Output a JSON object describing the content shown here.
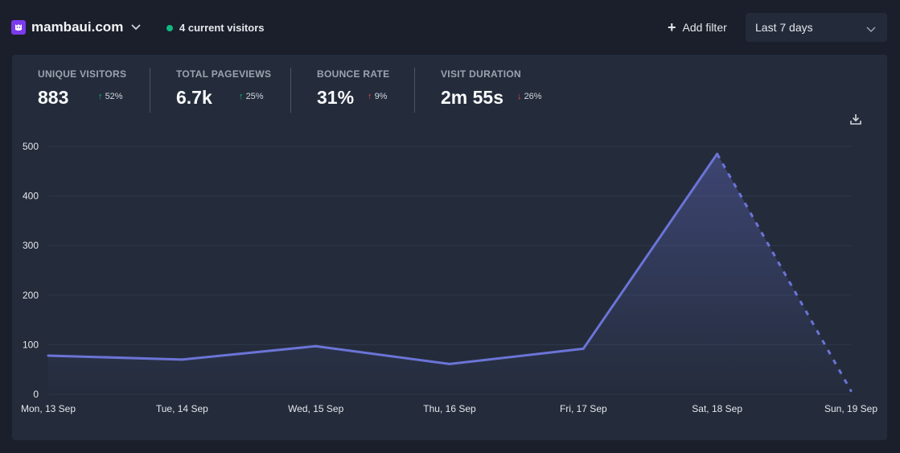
{
  "header": {
    "site_name": "mambaui.com",
    "current_visitors": "4 current visitors",
    "add_filter": "Add filter",
    "period": "Last 7 days"
  },
  "metrics": [
    {
      "label": "UNIQUE VISITORS",
      "value": "883",
      "change": "52%",
      "direction": "up"
    },
    {
      "label": "TOTAL PAGEVIEWS",
      "value": "6.7k",
      "change": "25%",
      "direction": "up"
    },
    {
      "label": "BOUNCE RATE",
      "value": "31%",
      "change": "9%",
      "direction": "up"
    },
    {
      "label": "VISIT DURATION",
      "value": "2m 55s",
      "change": "26%",
      "direction": "down"
    }
  ],
  "colors": {
    "line": "#6b74d6",
    "grid": "#2f3848",
    "positive": "#10b981",
    "negative": "#ef4444"
  },
  "chart_data": {
    "type": "line",
    "categories": [
      "Mon, 13 Sep",
      "Tue, 14 Sep",
      "Wed, 15 Sep",
      "Thu, 16 Sep",
      "Fri, 17 Sep",
      "Sat, 18 Sep",
      "Sun, 19 Sep"
    ],
    "values": [
      78,
      70,
      97,
      61,
      92,
      485,
      7
    ],
    "dashed_last_segment": true,
    "yticks": [
      0,
      100,
      200,
      300,
      400,
      500
    ],
    "ylim": [
      0,
      500
    ],
    "grid": true
  }
}
